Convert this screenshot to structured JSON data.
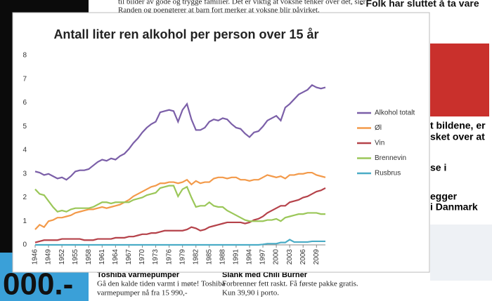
{
  "chart_data": {
    "type": "line",
    "title": "Antall liter ren alkohol per person over 15 år",
    "x": [
      1946,
      1947,
      1948,
      1949,
      1950,
      1951,
      1952,
      1953,
      1954,
      1955,
      1956,
      1957,
      1958,
      1959,
      1960,
      1961,
      1962,
      1963,
      1964,
      1965,
      1966,
      1967,
      1968,
      1969,
      1970,
      1971,
      1972,
      1973,
      1974,
      1975,
      1976,
      1977,
      1978,
      1979,
      1980,
      1981,
      1982,
      1983,
      1984,
      1985,
      1986,
      1987,
      1988,
      1989,
      1990,
      1991,
      1992,
      1993,
      1994,
      1995,
      1996,
      1997,
      1998,
      1999,
      2000,
      2001,
      2002,
      2003,
      2004,
      2005,
      2006,
      2007,
      2008,
      2009,
      2010,
      2011
    ],
    "series": [
      {
        "name": "Alkohol totalt",
        "color": "#7b5fa8",
        "values": [
          3.1,
          3.05,
          2.95,
          3.0,
          2.9,
          2.8,
          2.85,
          2.75,
          2.9,
          3.1,
          3.15,
          3.15,
          3.2,
          3.35,
          3.5,
          3.6,
          3.55,
          3.65,
          3.6,
          3.75,
          3.85,
          4.05,
          4.3,
          4.5,
          4.75,
          4.95,
          5.1,
          5.2,
          5.6,
          5.65,
          5.7,
          5.65,
          5.2,
          5.7,
          5.95,
          5.3,
          4.85,
          4.85,
          4.95,
          5.2,
          5.3,
          5.25,
          5.35,
          5.3,
          5.1,
          4.95,
          4.9,
          4.7,
          4.55,
          4.75,
          4.8,
          5.0,
          5.25,
          5.35,
          5.45,
          5.25,
          5.8,
          5.95,
          6.15,
          6.35,
          6.45,
          6.55,
          6.75,
          6.65,
          6.6,
          6.65
        ]
      },
      {
        "name": "Øl",
        "color": "#f39a4a",
        "values": [
          0.65,
          0.85,
          0.75,
          1.0,
          1.05,
          1.15,
          1.15,
          1.2,
          1.25,
          1.35,
          1.4,
          1.45,
          1.5,
          1.5,
          1.55,
          1.6,
          1.55,
          1.6,
          1.65,
          1.7,
          1.8,
          1.9,
          2.05,
          2.15,
          2.25,
          2.35,
          2.45,
          2.5,
          2.6,
          2.6,
          2.65,
          2.65,
          2.6,
          2.65,
          2.75,
          2.55,
          2.7,
          2.6,
          2.65,
          2.65,
          2.8,
          2.85,
          2.85,
          2.8,
          2.85,
          2.85,
          2.75,
          2.75,
          2.7,
          2.75,
          2.75,
          2.85,
          2.95,
          2.9,
          2.85,
          2.9,
          2.8,
          2.95,
          2.95,
          3.0,
          3.0,
          3.05,
          3.05,
          2.95,
          2.9,
          2.85
        ]
      },
      {
        "name": "Vin",
        "color": "#b5424a",
        "values": [
          0.1,
          0.15,
          0.2,
          0.2,
          0.2,
          0.2,
          0.25,
          0.25,
          0.25,
          0.25,
          0.25,
          0.2,
          0.2,
          0.2,
          0.25,
          0.25,
          0.25,
          0.25,
          0.3,
          0.3,
          0.3,
          0.35,
          0.35,
          0.4,
          0.45,
          0.45,
          0.5,
          0.5,
          0.55,
          0.6,
          0.6,
          0.6,
          0.6,
          0.6,
          0.65,
          0.75,
          0.7,
          0.6,
          0.65,
          0.75,
          0.8,
          0.85,
          0.9,
          0.95,
          0.95,
          0.95,
          0.95,
          0.9,
          0.95,
          1.05,
          1.1,
          1.2,
          1.35,
          1.45,
          1.55,
          1.65,
          1.65,
          1.8,
          1.85,
          1.9,
          2.0,
          2.05,
          2.15,
          2.25,
          2.3,
          2.4
        ]
      },
      {
        "name": "Brennevin",
        "color": "#9bc759",
        "values": [
          2.35,
          2.15,
          2.1,
          1.85,
          1.6,
          1.4,
          1.45,
          1.4,
          1.5,
          1.55,
          1.55,
          1.55,
          1.55,
          1.6,
          1.7,
          1.8,
          1.8,
          1.75,
          1.8,
          1.8,
          1.8,
          1.8,
          1.9,
          1.95,
          2.0,
          2.1,
          2.15,
          2.2,
          2.4,
          2.45,
          2.5,
          2.5,
          2.05,
          2.35,
          2.45,
          2.0,
          1.6,
          1.65,
          1.65,
          1.8,
          1.65,
          1.6,
          1.6,
          1.45,
          1.35,
          1.25,
          1.15,
          1.05,
          1.0,
          1.0,
          1.0,
          1.0,
          1.05,
          1.05,
          1.1,
          1.0,
          1.15,
          1.2,
          1.25,
          1.3,
          1.3,
          1.35,
          1.35,
          1.35,
          1.3,
          1.3
        ]
      },
      {
        "name": "Rusbrus",
        "color": "#4aacc6",
        "values": [
          0,
          0,
          0,
          0,
          0,
          0,
          0,
          0,
          0,
          0,
          0,
          0,
          0,
          0,
          0,
          0,
          0,
          0,
          0,
          0,
          0,
          0,
          0,
          0,
          0,
          0,
          0,
          0,
          0,
          0,
          0,
          0,
          0,
          0,
          0,
          0,
          0,
          0,
          0,
          0,
          0,
          0,
          0,
          0,
          0,
          0,
          0,
          0,
          0,
          0,
          0,
          0.02,
          0.05,
          0.05,
          0.05,
          0.1,
          0.1,
          0.22,
          0.12,
          0.12,
          0.12,
          0.12,
          0.15,
          0.15,
          0.15,
          0.15
        ]
      }
    ],
    "xlim": [
      1946,
      2011
    ],
    "xticks": [
      1946,
      1949,
      1952,
      1955,
      1958,
      1961,
      1964,
      1967,
      1970,
      1973,
      1976,
      1979,
      1982,
      1985,
      1988,
      1991,
      1994,
      1997,
      2000,
      2003,
      2006,
      2009
    ],
    "ylim": [
      0,
      8
    ],
    "yticks": [
      0,
      1,
      2,
      3,
      4,
      5,
      6,
      7,
      8
    ],
    "grid": false,
    "legend": "right"
  },
  "page": {
    "article_line_1": "til bilder av gode og trygge familier. Det er viktig at voksne tenker over det, sier",
    "article_line_2": "Randen og poengterer at barn fort merker at voksne blir påvirket.",
    "side_headline": "- Folk har sluttet å ta vare",
    "side_1": "t bildene, er",
    "side_2": "sket over at",
    "side_3": "se i",
    "side_4": "egger",
    "side_5": "i Danmark",
    "ad_1_title": "Toshiba varmepumper",
    "ad_1_text_1": "Gå den kalde tiden varmt i møte! Toshiba",
    "ad_1_text_2": "varmepumper nå fra 15 990,-",
    "ad_2_title": "Slank med Chili Burner",
    "ad_2_text_1": "Forbrenner fett raskt. Få første pakke gratis.",
    "ad_2_text_2": "Kun 39,90 i porto.",
    "ad_big": "000.-"
  }
}
